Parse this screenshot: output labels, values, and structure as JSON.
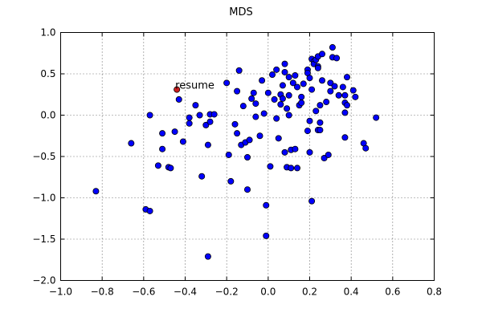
{
  "chart_data": {
    "type": "scatter",
    "title": "MDS",
    "xlabel": "",
    "ylabel": "",
    "xlim": [
      -1.0,
      0.8
    ],
    "ylim": [
      -2.0,
      1.0
    ],
    "xticks": [
      "−1.0",
      "−0.8",
      "−0.6",
      "−0.4",
      "−0.2",
      "0.0",
      "0.2",
      "0.4",
      "0.6",
      "0.8"
    ],
    "yticks": [
      "1.0",
      "0.5",
      "0.0",
      "−0.5",
      "−1.0",
      "−1.5",
      "−2.0"
    ],
    "xtick_values": [
      -1.0,
      -0.8,
      -0.6,
      -0.4,
      -0.2,
      0.0,
      0.2,
      0.4,
      0.6,
      0.8
    ],
    "ytick_values": [
      1.0,
      0.5,
      0.0,
      -0.5,
      -1.0,
      -1.5,
      -2.0
    ],
    "grid": true,
    "colors": {
      "points": "#0000ff",
      "highlight": "#cc1f1f",
      "edge": "#000000"
    },
    "highlight": {
      "label": "resume",
      "x": -0.44,
      "y": 0.31
    },
    "points": [
      [
        -0.83,
        -0.92
      ],
      [
        -0.66,
        -0.34
      ],
      [
        -0.59,
        -1.14
      ],
      [
        -0.57,
        -1.16
      ],
      [
        -0.57,
        0.0
      ],
      [
        -0.53,
        -0.61
      ],
      [
        -0.51,
        -0.22
      ],
      [
        -0.51,
        -0.41
      ],
      [
        -0.48,
        -0.63
      ],
      [
        -0.47,
        -0.64
      ],
      [
        -0.45,
        -0.2
      ],
      [
        -0.43,
        0.19
      ],
      [
        -0.41,
        -0.32
      ],
      [
        -0.38,
        -0.1
      ],
      [
        -0.38,
        -0.03
      ],
      [
        -0.35,
        0.12
      ],
      [
        -0.33,
        0.0
      ],
      [
        -0.32,
        -0.74
      ],
      [
        -0.3,
        -0.12
      ],
      [
        -0.29,
        -0.36
      ],
      [
        -0.29,
        -1.71
      ],
      [
        -0.28,
        -0.08
      ],
      [
        -0.28,
        0.01
      ],
      [
        -0.26,
        0.01
      ],
      [
        -0.2,
        0.39
      ],
      [
        -0.19,
        -0.48
      ],
      [
        -0.18,
        -0.8
      ],
      [
        -0.16,
        -0.11
      ],
      [
        -0.15,
        -0.22
      ],
      [
        -0.15,
        0.29
      ],
      [
        -0.14,
        0.54
      ],
      [
        -0.13,
        -0.36
      ],
      [
        -0.12,
        0.11
      ],
      [
        -0.11,
        -0.33
      ],
      [
        -0.1,
        -0.51
      ],
      [
        -0.1,
        -0.9
      ],
      [
        -0.09,
        -0.3
      ],
      [
        -0.08,
        0.2
      ],
      [
        -0.07,
        0.27
      ],
      [
        -0.06,
        -0.02
      ],
      [
        -0.06,
        0.14
      ],
      [
        -0.04,
        -0.25
      ],
      [
        -0.03,
        0.42
      ],
      [
        -0.02,
        0.02
      ],
      [
        -0.01,
        -1.46
      ],
      [
        -0.01,
        -1.09
      ],
      [
        0.0,
        0.27
      ],
      [
        0.01,
        -0.62
      ],
      [
        0.02,
        0.49
      ],
      [
        0.03,
        0.19
      ],
      [
        0.04,
        0.55
      ],
      [
        0.04,
        -0.04
      ],
      [
        0.05,
        -0.28
      ],
      [
        0.06,
        0.25
      ],
      [
        0.06,
        0.13
      ],
      [
        0.07,
        0.36
      ],
      [
        0.07,
        0.2
      ],
      [
        0.08,
        0.62
      ],
      [
        0.08,
        -0.45
      ],
      [
        0.08,
        0.52
      ],
      [
        0.09,
        0.08
      ],
      [
        0.09,
        -0.63
      ],
      [
        0.1,
        0.24
      ],
      [
        0.1,
        0.46
      ],
      [
        0.1,
        0.0
      ],
      [
        0.11,
        -0.42
      ],
      [
        0.11,
        -0.64
      ],
      [
        0.12,
        0.39
      ],
      [
        0.13,
        0.48
      ],
      [
        0.13,
        -0.41
      ],
      [
        0.14,
        -0.64
      ],
      [
        0.14,
        0.34
      ],
      [
        0.15,
        0.12
      ],
      [
        0.16,
        0.22
      ],
      [
        0.16,
        0.15
      ],
      [
        0.17,
        0.38
      ],
      [
        0.19,
        0.55
      ],
      [
        0.19,
        0.51
      ],
      [
        0.19,
        -0.19
      ],
      [
        0.2,
        -0.07
      ],
      [
        0.2,
        -0.45
      ],
      [
        0.2,
        0.45
      ],
      [
        0.21,
        0.68
      ],
      [
        0.21,
        0.31
      ],
      [
        0.21,
        -1.04
      ],
      [
        0.22,
        0.65
      ],
      [
        0.22,
        0.62
      ],
      [
        0.23,
        0.05
      ],
      [
        0.23,
        0.67
      ],
      [
        0.24,
        0.59
      ],
      [
        0.24,
        0.71
      ],
      [
        0.24,
        0.57
      ],
      [
        0.24,
        -0.18
      ],
      [
        0.25,
        -0.09
      ],
      [
        0.25,
        -0.18
      ],
      [
        0.25,
        0.12
      ],
      [
        0.26,
        0.74
      ],
      [
        0.26,
        0.42
      ],
      [
        0.27,
        -0.52
      ],
      [
        0.28,
        0.16
      ],
      [
        0.29,
        -0.48
      ],
      [
        0.3,
        0.39
      ],
      [
        0.3,
        0.29
      ],
      [
        0.31,
        0.82
      ],
      [
        0.31,
        0.7
      ],
      [
        0.32,
        0.35
      ],
      [
        0.33,
        0.69
      ],
      [
        0.34,
        0.24
      ],
      [
        0.36,
        0.34
      ],
      [
        0.37,
        -0.27
      ],
      [
        0.37,
        0.24
      ],
      [
        0.37,
        0.15
      ],
      [
        0.37,
        0.03
      ],
      [
        0.38,
        0.46
      ],
      [
        0.38,
        0.12
      ],
      [
        0.41,
        0.3
      ],
      [
        0.42,
        0.22
      ],
      [
        0.46,
        -0.34
      ],
      [
        0.47,
        -0.4
      ],
      [
        0.52,
        -0.03
      ]
    ]
  }
}
